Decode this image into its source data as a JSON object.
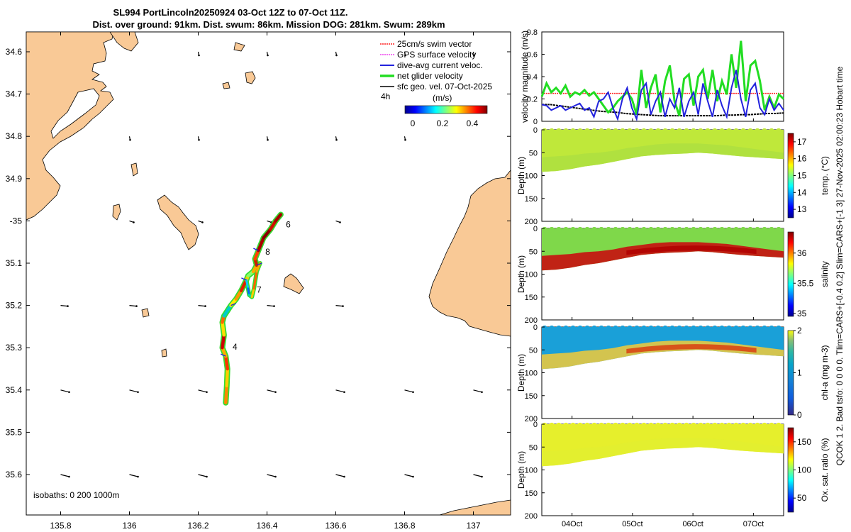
{
  "colors": {
    "land": "#f9c996",
    "track_outer": "#33dd33",
    "swim": "#ff2020",
    "gps": "#ee44ee",
    "dive_avg": "#2222dd",
    "net": "#22dd22",
    "sfc": "#000000"
  },
  "chart_data": [
    {
      "type": "map",
      "title": "SL994 PortLincoln20250924 03-Oct 12Z to 07-Oct 11Z.",
      "subtitle": "Dist. over ground: 91km. Dist. swum: 86km. Mission DOG: 281km. Swum: 289km",
      "xlim": [
        135.7,
        137.1
      ],
      "ylim_lat": [
        -35.7,
        -34.55
      ],
      "x_ticks": [
        135.8,
        136.0,
        136.2,
        136.4,
        136.6,
        136.8,
        137.0
      ],
      "x_tick_labels": [
        "135.8",
        "136",
        "136.2",
        "136.4",
        "136.6",
        "136.8",
        "137"
      ],
      "y_ticks": [
        -34.6,
        -34.7,
        -34.8,
        -34.9,
        -35.0,
        -35.1,
        -35.2,
        -35.3,
        -35.4,
        -35.5,
        -35.6
      ],
      "y_tick_labels": [
        "34.6",
        "34.7",
        "34.8",
        "34.9",
        "-35",
        "35.1",
        "35.2",
        "35.3",
        "35.4",
        "35.5",
        "35.6"
      ],
      "legend": [
        "25cm/s swim vector",
        "GPS surface velocity",
        "dive-avg current veloc.",
        "net glider velocity",
        "sfc geo. vel. 07-Oct-2025"
      ],
      "time_step_label": "4h",
      "colorbar": {
        "label": "(m/s)",
        "ticks": [
          "0",
          "0.2",
          "0.4"
        ],
        "range": [
          -0.05,
          0.5
        ]
      },
      "isobaths_note": "isobaths: 0   200  1000m",
      "track": [
        [
          136.28,
          -35.43
        ],
        [
          136.283,
          -35.39
        ],
        [
          136.285,
          -35.35
        ],
        [
          136.28,
          -35.32
        ],
        [
          136.27,
          -35.3
        ],
        [
          136.275,
          -35.27
        ],
        [
          136.27,
          -35.24
        ],
        [
          136.275,
          -35.225
        ],
        [
          136.295,
          -35.2
        ],
        [
          136.31,
          -35.185
        ],
        [
          136.325,
          -35.165
        ],
        [
          136.34,
          -35.14
        ],
        [
          136.345,
          -35.13
        ],
        [
          136.36,
          -35.12
        ],
        [
          136.37,
          -35.105
        ],
        [
          136.365,
          -35.09
        ],
        [
          136.375,
          -35.07
        ],
        [
          136.39,
          -35.04
        ],
        [
          136.41,
          -35.02
        ],
        [
          136.425,
          -35.0
        ],
        [
          136.44,
          -34.985
        ]
      ],
      "track_loop": [
        [
          136.34,
          -35.14
        ],
        [
          136.345,
          -35.16
        ],
        [
          136.348,
          -35.175
        ],
        [
          136.356,
          -35.18
        ],
        [
          136.362,
          -35.16
        ],
        [
          136.37,
          -35.12
        ],
        [
          136.38,
          -35.1
        ]
      ],
      "day_labels": [
        {
          "text": "4",
          "lon": 136.3,
          "lat": -35.305
        },
        {
          "text": "6",
          "lon": 136.455,
          "lat": -35.015
        },
        {
          "text": "7",
          "lon": 136.37,
          "lat": -35.17
        },
        {
          "text": "8",
          "lon": 136.395,
          "lat": -35.08
        }
      ],
      "vector_grid_lon": [
        135.8,
        136.0,
        136.2,
        136.4,
        136.6,
        136.8,
        137.0
      ],
      "vector_grid_lat": [
        -34.6,
        -34.8,
        -35.0,
        -35.2,
        -35.4,
        -35.6
      ]
    },
    {
      "type": "line",
      "ylabel": "velocity magnitude (m/s)",
      "ylim": [
        0,
        0.8
      ],
      "y_ticks": [
        "0",
        "0.2",
        "0.4",
        "0.6",
        "0.8"
      ],
      "t_range_days": [
        3.5,
        7.5
      ],
      "series": [
        {
          "name": "net glider velocity",
          "values": [
            0.22,
            0.34,
            0.26,
            0.3,
            0.25,
            0.32,
            0.22,
            0.26,
            0.24,
            0.28,
            0.23,
            0.26,
            0.2,
            0.14,
            0.08,
            0.12,
            0.18,
            0.22,
            0.26,
            0.2,
            0.06,
            0.46,
            0.12,
            0.3,
            0.42,
            0.08,
            0.36,
            0.5,
            0.18,
            0.05,
            0.38,
            0.42,
            0.14,
            0.4,
            0.46,
            0.2,
            0.46,
            0.18,
            0.36,
            0.24,
            0.6,
            0.3,
            0.72,
            0.18,
            0.5,
            0.54,
            0.36,
            0.1,
            0.22,
            0.12,
            0.24,
            0.2
          ]
        },
        {
          "name": "dive-avg current veloc.",
          "values": [
            0.15,
            0.14,
            0.1,
            0.12,
            0.14,
            0.1,
            0.12,
            0.14,
            0.16,
            0.1,
            0.12,
            0.04,
            0.18,
            0.2,
            0.26,
            0.12,
            0.02,
            0.2,
            0.3,
            0.12,
            0.02,
            0.28,
            0.34,
            0.06,
            0.18,
            0.26,
            0.04,
            0.2,
            0.12,
            0.3,
            0.04,
            0.18,
            0.26,
            0.06,
            0.34,
            0.18,
            0.04,
            0.28,
            0.14,
            0.04,
            0.3,
            0.46,
            0.2,
            0.04,
            0.28,
            0.34,
            0.12,
            0.06,
            0.2,
            0.1,
            0.16,
            0.1
          ]
        },
        {
          "name": "sfc geo. vel.",
          "values": [
            0.15,
            0.15,
            0.14,
            0.13,
            0.12,
            0.11,
            0.1,
            0.09,
            0.085,
            0.08,
            0.07,
            0.065,
            0.06,
            0.055,
            0.05,
            0.05,
            0.05,
            0.05,
            0.05,
            0.05,
            0.05,
            0.05,
            0.055,
            0.055,
            0.06,
            0.06,
            0.065,
            0.07,
            0.07,
            0.075
          ]
        },
        {
          "name": "25cm/s swim vector",
          "values": [
            0.25
          ]
        }
      ]
    },
    {
      "type": "heatmap",
      "ylabel": "Depth (m)",
      "variable": "temp. (°C)",
      "y_ticks": [
        "0",
        "50",
        "100",
        "150",
        "200"
      ],
      "cbar_ticks": [
        "13",
        "14",
        "15",
        "16",
        "17"
      ],
      "cbar_range": [
        12.5,
        17.5
      ],
      "values_top_mid_bottom": [
        15.6,
        15.0,
        15.4
      ]
    },
    {
      "type": "heatmap",
      "ylabel": "Depth (m)",
      "variable": "salinity",
      "y_ticks": [
        "0",
        "50",
        "100",
        "150",
        "200"
      ],
      "cbar_ticks": [
        "35",
        "35.5",
        "36"
      ],
      "cbar_range": [
        34.95,
        36.35
      ],
      "values_top_mid_bottom": [
        35.9,
        36.3,
        36.1
      ]
    },
    {
      "type": "heatmap",
      "ylabel": "Depth (m)",
      "variable": "chl-a (mg m-3)",
      "y_ticks": [
        "0",
        "50",
        "100",
        "150",
        "200"
      ],
      "cbar_ticks": [
        "0",
        "1",
        "2"
      ],
      "cbar_range": [
        0,
        2
      ],
      "values_top_mid_bottom": [
        0.4,
        1.6,
        0.9
      ]
    },
    {
      "type": "heatmap",
      "ylabel": "Depth (m)",
      "variable": "Ox. sat. ratio (%)",
      "y_ticks": [
        "0",
        "50",
        "100",
        "150",
        "200"
      ],
      "cbar_ticks": [
        "50",
        "100",
        "150"
      ],
      "cbar_range": [
        25,
        175
      ],
      "values_top_mid_bottom": [
        125,
        125,
        124
      ],
      "x_tick_labels": [
        "04Oct",
        "05Oct",
        "06Oct",
        "07Oct"
      ]
    }
  ],
  "side_note": "QCOK 1  2. Bad tsfo: 0  0  0  0. Tlim=CARS+[-0.4 0.2] Slim=CARS+[-1 3] 27-Nov-2025 02:00:23 Hobart time"
}
